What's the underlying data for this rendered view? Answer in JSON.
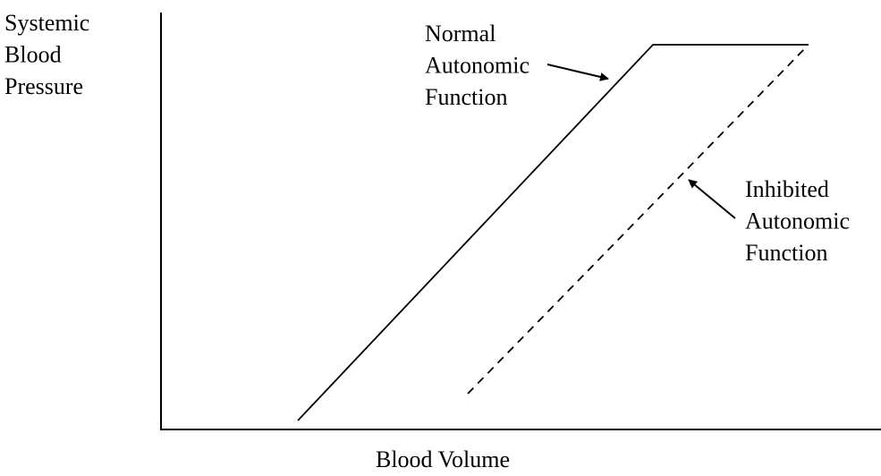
{
  "y_axis_label": [
    "Systemic",
    "Blood",
    "Pressure"
  ],
  "x_axis_label": "Blood Volume",
  "curves": [
    {
      "label": [
        "Normal",
        "Autonomic",
        "Function"
      ]
    },
    {
      "label": [
        "Inhibited",
        "Autonomic",
        "Function"
      ]
    }
  ]
}
